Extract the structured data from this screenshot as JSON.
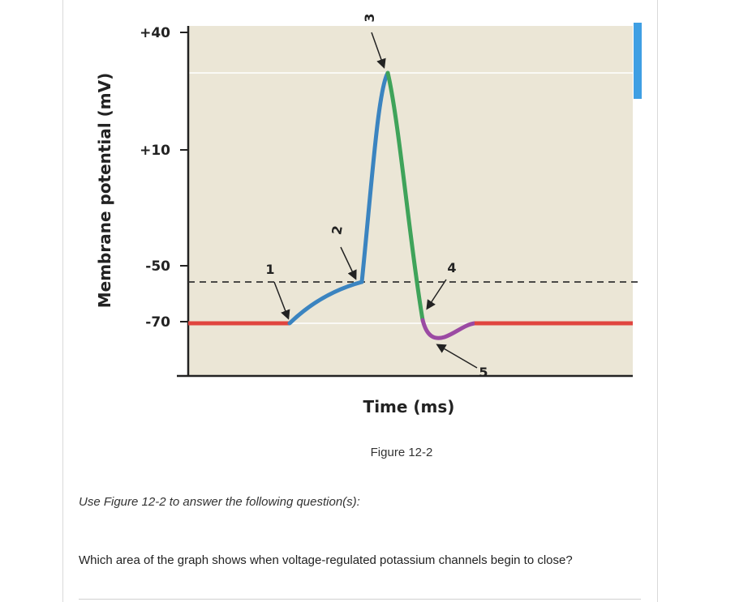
{
  "figure": {
    "caption": "Figure 12-2"
  },
  "chart_data": {
    "type": "line",
    "ylabel": "Membrane potential (mV)",
    "xlabel": "Time (ms)",
    "y_ticks": [
      "+40",
      "+10",
      "-50",
      "-70"
    ],
    "markers": [
      "1",
      "2",
      "3",
      "4",
      "5"
    ],
    "series": [
      {
        "color": "#e0453f",
        "segment": "resting"
      },
      {
        "color": "#3b84c0",
        "segment": "depolarization"
      },
      {
        "color": "#3fa35a",
        "segment": "repolarization"
      },
      {
        "color": "#9b4aa3",
        "segment": "hyperpolarization"
      }
    ],
    "threshold_line": "dashed"
  },
  "question": {
    "instruction": "Use Figure 12-2 to answer the following question(s):",
    "text": "Which area of the graph shows when voltage-regulated potassium channels begin to close?"
  }
}
